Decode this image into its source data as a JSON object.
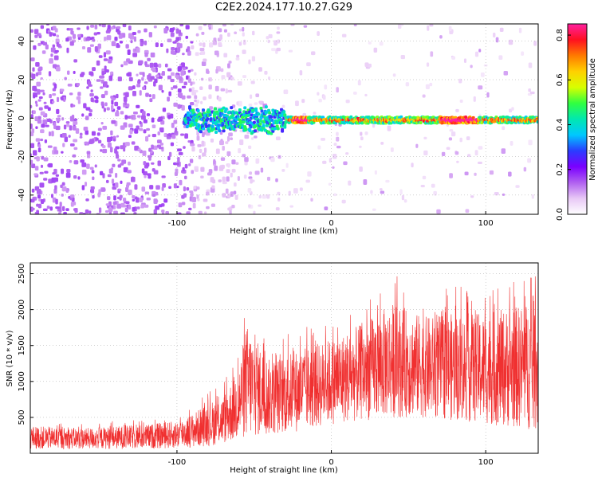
{
  "title": "C2E2.2024.177.10.27.G29",
  "chart_data": [
    {
      "type": "heatmap",
      "xlabel": "Height of straight line (km)",
      "ylabel": "Frequency (Hz)",
      "xlim": [
        -195,
        134
      ],
      "ylim": [
        -50,
        49
      ],
      "xticks": [
        -100,
        0,
        100
      ],
      "yticks": [
        -40,
        -20,
        0,
        20,
        40
      ],
      "colorbar": {
        "label": "Normalized spectral amplitude",
        "range": [
          0,
          0.85
        ],
        "ticks": [
          0.0,
          0.2,
          0.4,
          0.6,
          0.8
        ],
        "colormap": [
          "#ffffff",
          "#e8c8f6",
          "#b060f0",
          "#7a00ff",
          "#2a3cff",
          "#00c8ff",
          "#00e8b0",
          "#30ff40",
          "#d8ff00",
          "#ffd000",
          "#ff7a00",
          "#ff1020",
          "#ff20a0"
        ]
      },
      "features": {
        "noise_fade_height_km": -90,
        "signal_line_frequency_hz": -1,
        "signal_onset_height_km": -95,
        "signal_peak_amplitude": 0.85
      },
      "grid": true
    },
    {
      "type": "line",
      "xlabel": "Height of straight line (km)",
      "ylabel": "SNR (10 * v/v)",
      "xlim": [
        -195,
        134
      ],
      "ylim": [
        0,
        2650
      ],
      "xticks": [
        -100,
        0,
        100
      ],
      "yticks": [
        500,
        1000,
        1500,
        2000,
        2500
      ],
      "color": "#f03030",
      "envelope": {
        "x": [
          -195,
          -160,
          -120,
          -100,
          -90,
          -80,
          -70,
          -60,
          -55,
          -40,
          -20,
          0,
          20,
          40,
          60,
          80,
          100,
          120,
          134
        ],
        "low": [
          60,
          60,
          60,
          70,
          80,
          100,
          130,
          180,
          200,
          250,
          300,
          400,
          450,
          500,
          500,
          450,
          400,
          350,
          300
        ],
        "high": [
          380,
          350,
          400,
          450,
          550,
          700,
          800,
          1200,
          1800,
          1300,
          1450,
          1600,
          1800,
          2100,
          1900,
          1950,
          1950,
          2050,
          2150
        ]
      },
      "grid": true
    }
  ]
}
